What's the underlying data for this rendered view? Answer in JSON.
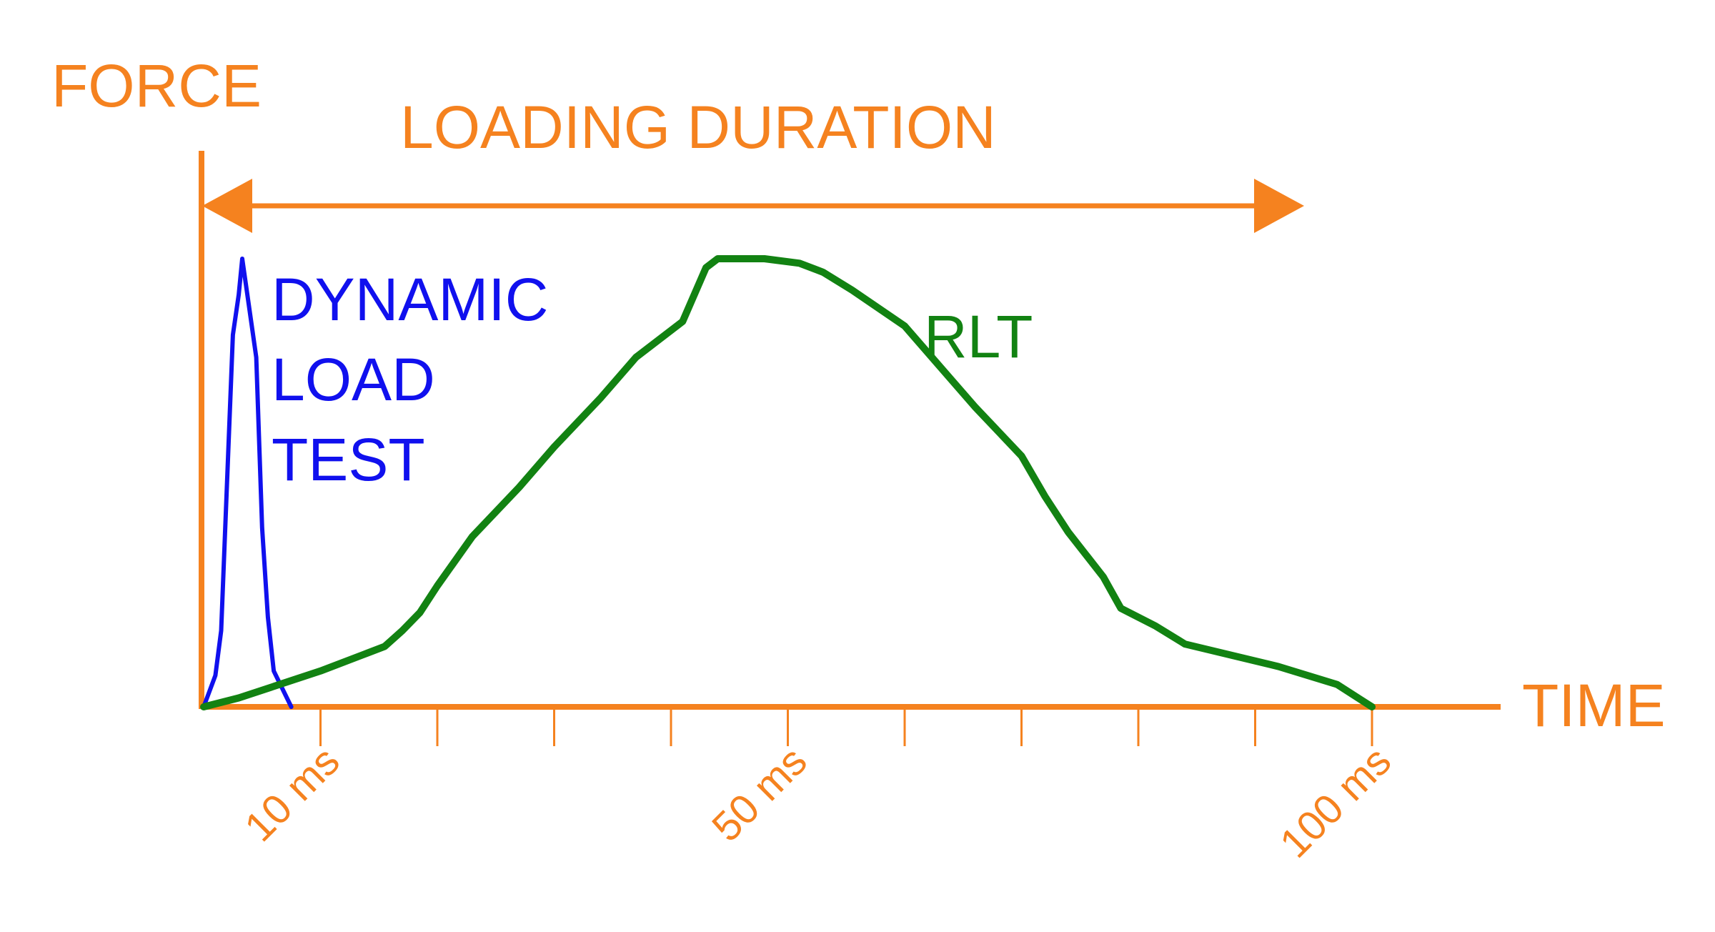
{
  "chart_data": {
    "type": "line",
    "title": "",
    "ylabel": "FORCE",
    "xlabel": "TIME",
    "xlim": [
      0,
      105
    ],
    "ylim": [
      0,
      1
    ],
    "x_ticks": [
      10,
      20,
      30,
      40,
      50,
      60,
      70,
      80,
      90,
      100
    ],
    "x_tick_labels": [
      {
        "x": 10,
        "label": "10 ms"
      },
      {
        "x": 50,
        "label": "50 ms"
      },
      {
        "x": 100,
        "label": "100 ms"
      }
    ],
    "grid": false,
    "annotations": [
      {
        "text": "LOADING DURATION",
        "type": "double-arrow",
        "x_start": 0,
        "x_end": 94,
        "y": 1.12
      }
    ],
    "series": [
      {
        "name": "DYNAMIC LOAD TEST",
        "label_lines": [
          "DYNAMIC",
          "LOAD",
          "TEST"
        ],
        "color": "#1010ee",
        "x": [
          0,
          1,
          1.5,
          2,
          2.5,
          3,
          3.3,
          4.5,
          5,
          5.5,
          6,
          7.5
        ],
        "y": [
          0,
          0.07,
          0.17,
          0.5,
          0.83,
          0.92,
          1.0,
          0.78,
          0.4,
          0.2,
          0.08,
          0.0
        ]
      },
      {
        "name": "RLT",
        "label_lines": [
          "RLT"
        ],
        "color": "#128212",
        "x": [
          0,
          3,
          10,
          14,
          15.5,
          17,
          18.5,
          20,
          23,
          27,
          30,
          34,
          37,
          41,
          43,
          44,
          45,
          48,
          51,
          53,
          55.5,
          60,
          63,
          66,
          70,
          72,
          74,
          77,
          78.5,
          81.5,
          84,
          92,
          97,
          100
        ],
        "y": [
          0,
          0.02,
          0.08,
          0.12,
          0.135,
          0.17,
          0.21,
          0.27,
          0.38,
          0.49,
          0.58,
          0.69,
          0.78,
          0.86,
          0.98,
          1.0,
          1.0,
          1.0,
          0.99,
          0.97,
          0.93,
          0.85,
          0.76,
          0.67,
          0.56,
          0.47,
          0.39,
          0.29,
          0.22,
          0.18,
          0.14,
          0.09,
          0.05,
          0.0
        ]
      }
    ]
  }
}
